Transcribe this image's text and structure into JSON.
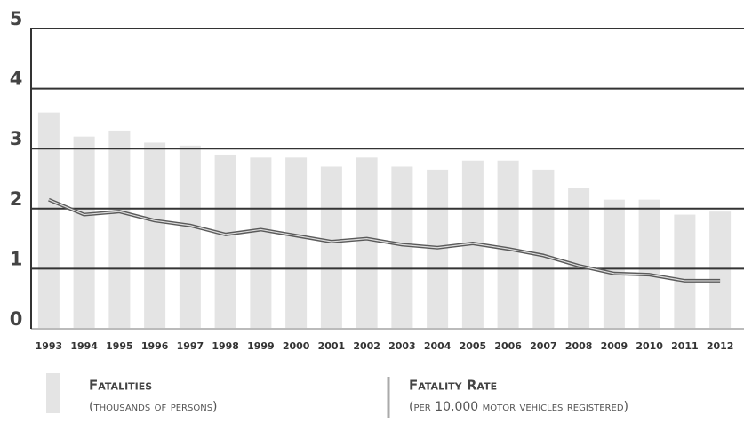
{
  "chart_data": {
    "type": "bar",
    "categories": [
      "1993",
      "1994",
      "1995",
      "1996",
      "1997",
      "1998",
      "1999",
      "2000",
      "2001",
      "2002",
      "2003",
      "2004",
      "2005",
      "2006",
      "2007",
      "2008",
      "2009",
      "2010",
      "2011",
      "2012"
    ],
    "series": [
      {
        "name": "Fatalities",
        "unit": "(thousands of persons)",
        "type": "bar",
        "color": "#e4e4e4",
        "values": [
          3.6,
          3.2,
          3.3,
          3.1,
          3.05,
          2.9,
          2.85,
          2.85,
          2.7,
          2.85,
          2.7,
          2.65,
          2.8,
          2.8,
          2.65,
          2.35,
          2.15,
          2.15,
          1.9,
          1.95
        ]
      },
      {
        "name": "Fatality Rate",
        "unit": "(per 10,000 motor vehicles registered)",
        "type": "line",
        "color": "#5a5a5a",
        "values": [
          2.15,
          1.9,
          1.95,
          1.8,
          1.72,
          1.57,
          1.65,
          1.55,
          1.45,
          1.5,
          1.4,
          1.35,
          1.42,
          1.33,
          1.22,
          1.05,
          0.92,
          0.9,
          0.8,
          0.8
        ]
      }
    ],
    "ylim": [
      0,
      5
    ],
    "yticks": [
      0,
      1,
      2,
      3,
      4,
      5
    ],
    "grid": true
  }
}
